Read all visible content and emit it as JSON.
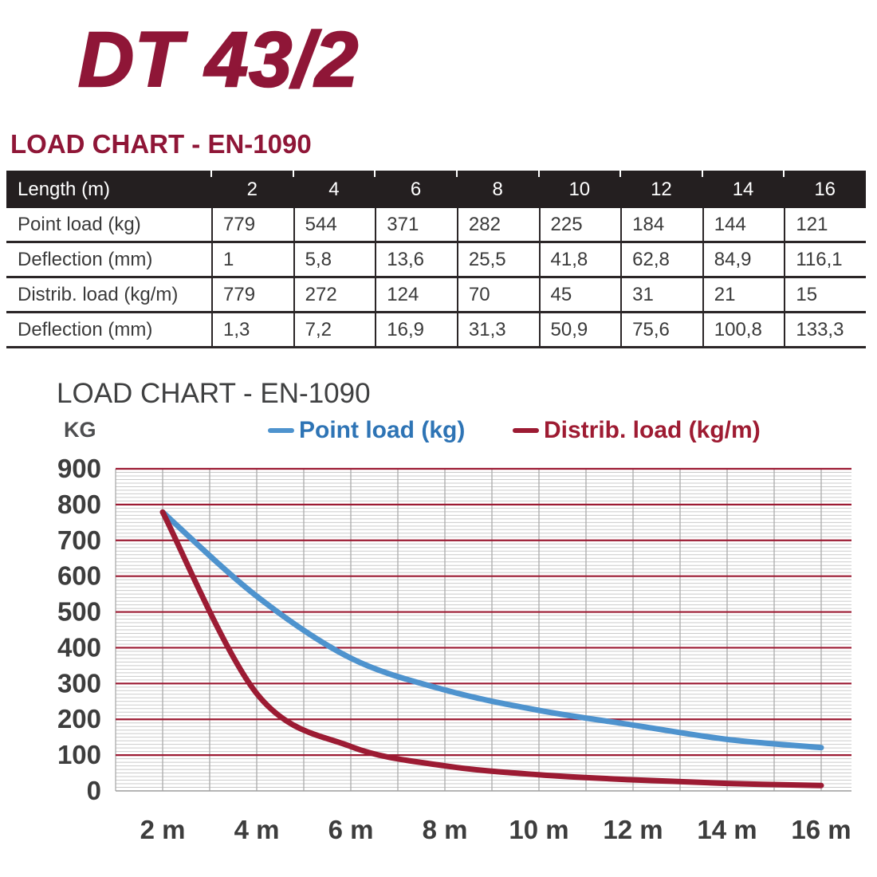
{
  "header": {
    "product_title": "DT 43/2",
    "section_heading": "LOAD CHART - EN-1090"
  },
  "table": {
    "header": {
      "label": "Length (m)",
      "columns": [
        "2",
        "4",
        "6",
        "8",
        "10",
        "12",
        "14",
        "16"
      ]
    },
    "rows": [
      {
        "label": "Point load (kg)",
        "values": [
          "779",
          "544",
          "371",
          "282",
          "225",
          "184",
          "144",
          "121"
        ]
      },
      {
        "label": "Deflection (mm)",
        "values": [
          "1",
          "5,8",
          "13,6",
          "25,5",
          "41,8",
          "62,8",
          "84,9",
          "116,1"
        ]
      },
      {
        "label": "Distrib. load (kg/m)",
        "values": [
          "779",
          "272",
          "124",
          "70",
          "45",
          "31",
          "21",
          "15"
        ]
      },
      {
        "label": "Deflection (mm)",
        "values": [
          "1,3",
          "7,2",
          "16,9",
          "31,3",
          "50,9",
          "75,6",
          "100,8",
          "133,3"
        ]
      }
    ]
  },
  "chart": {
    "title": "LOAD CHART - EN-1090",
    "unit_label": "KG",
    "legend": [
      {
        "label": "Point load (kg)",
        "text_color": "#2E74B5",
        "line_color": "#4E93CE"
      },
      {
        "label": "Distrib. load (kg/m)",
        "text_color": "#9E1B32",
        "line_color": "#9C1B33"
      }
    ]
  },
  "chart_data": {
    "type": "line",
    "title": "LOAD CHART - EN-1090",
    "ylabel": "KG",
    "x": [
      2,
      4,
      6,
      8,
      10,
      12,
      14,
      16
    ],
    "x_tick_labels": [
      "2 m",
      "4 m",
      "6 m",
      "8 m",
      "10 m",
      "12 m",
      "14 m",
      "16 m"
    ],
    "series": [
      {
        "name": "Point load (kg)",
        "color": "#4E93CE",
        "values": [
          779,
          544,
          371,
          282,
          225,
          184,
          144,
          121
        ]
      },
      {
        "name": "Distrib. load (kg/m)",
        "color": "#9C1B33",
        "values": [
          779,
          272,
          124,
          70,
          45,
          31,
          21,
          15
        ]
      }
    ],
    "ylim": [
      0,
      900
    ],
    "y_major_step": 100,
    "y_minor_step": 10,
    "y_tick_labels": [
      "0",
      "100",
      "200",
      "300",
      "400",
      "500",
      "600",
      "700",
      "800",
      "900"
    ],
    "x_shown_range_m": [
      1,
      16.65
    ],
    "x_gridline_every_m": 1,
    "legend_position": "top",
    "grid": {
      "major_color": "#9C1B33",
      "minor_color": "#CBCBCB",
      "vertical_color": "#ABABAB",
      "zero_axis_color": "#9C9C9C"
    }
  },
  "colors": {
    "brand_maroon": "#8F1637",
    "table_header_bg": "#241F20",
    "table_border": "#2B2627",
    "table_text": "#3A3A3A",
    "axis_label": "#3D3D3D",
    "chart_title": "#3F4041"
  }
}
